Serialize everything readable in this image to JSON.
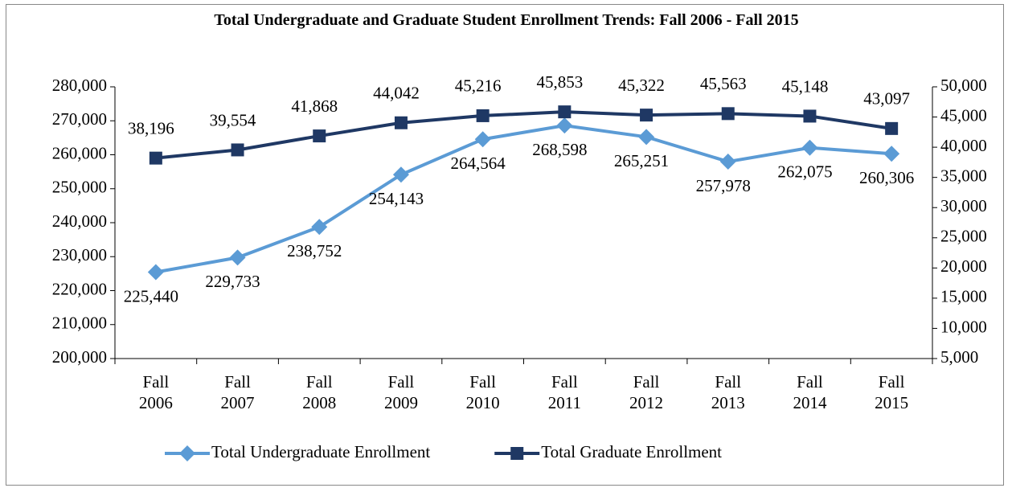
{
  "chart_data": {
    "type": "line",
    "title": "Total Undergraduate and Graduate Student Enrollment Trends: Fall 2006 - Fall 2015",
    "categories": [
      "Fall 2006",
      "Fall 2007",
      "Fall 2008",
      "Fall 2009",
      "Fall 2010",
      "Fall 2011",
      "Fall 2012",
      "Fall 2013",
      "Fall 2014",
      "Fall 2015"
    ],
    "series": [
      {
        "name": "Total Undergraduate Enrollment",
        "color": "#5b9bd5",
        "marker": "diamond",
        "label_position": "below",
        "values": [
          225440,
          229733,
          238752,
          254143,
          264564,
          268598,
          265251,
          257978,
          262075,
          260306
        ],
        "value_labels": [
          "225,440",
          "229,733",
          "238,752",
          "254,143",
          "264,564",
          "268,598",
          "265,251",
          "257,978",
          "262,075",
          "260,306"
        ]
      },
      {
        "name": "Total Graduate Enrollment",
        "color": "#1f3864",
        "marker": "square",
        "axis": "y2",
        "label_position": "above",
        "values": [
          38196,
          39554,
          41868,
          44042,
          45216,
          45853,
          45322,
          45563,
          45148,
          43097
        ],
        "value_labels": [
          "38,196",
          "39,554",
          "41,868",
          "44,042",
          "45,216",
          "45,853",
          "45,322",
          "45,563",
          "45,148",
          "43,097"
        ]
      }
    ],
    "ylim": [
      200000,
      280000
    ],
    "yticks": [
      {
        "value": 200000,
        "label": "200,000"
      },
      {
        "value": 210000,
        "label": "210,000"
      },
      {
        "value": 220000,
        "label": "220,000"
      },
      {
        "value": 230000,
        "label": "230,000"
      },
      {
        "value": 240000,
        "label": "240,000"
      },
      {
        "value": 250000,
        "label": "250,000"
      },
      {
        "value": 260000,
        "label": "260,000"
      },
      {
        "value": 270000,
        "label": "270,000"
      },
      {
        "value": 280000,
        "label": "280,000"
      }
    ],
    "y2lim": [
      5000,
      50000
    ],
    "y2ticks": [
      {
        "value": 5000,
        "label": "5,000"
      },
      {
        "value": 10000,
        "label": "10,000"
      },
      {
        "value": 15000,
        "label": "15,000"
      },
      {
        "value": 20000,
        "label": "20,000"
      },
      {
        "value": 25000,
        "label": "25,000"
      },
      {
        "value": 30000,
        "label": "30,000"
      },
      {
        "value": 35000,
        "label": "35,000"
      },
      {
        "value": 40000,
        "label": "40,000"
      },
      {
        "value": 45000,
        "label": "45,000"
      },
      {
        "value": 50000,
        "label": "50,000"
      }
    ],
    "grid": false,
    "legend": "bottom"
  }
}
